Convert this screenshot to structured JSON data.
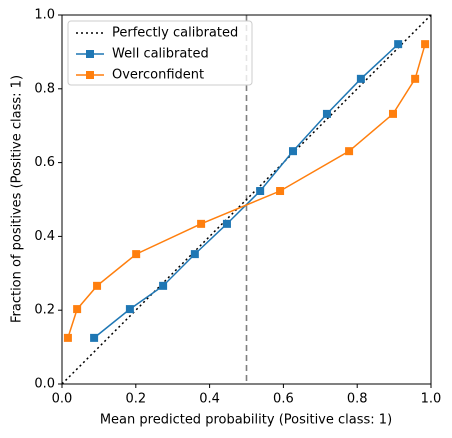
{
  "chart_data": {
    "type": "line",
    "xlabel": "Mean predicted probability (Positive class: 1)",
    "ylabel": "Fraction of positives (Positive class: 1)",
    "xlim": [
      0,
      1
    ],
    "ylim": [
      0,
      1
    ],
    "xticks": [
      {
        "value": 0,
        "label": "0.0"
      },
      {
        "value": 0.2,
        "label": "0.2"
      },
      {
        "value": 0.4,
        "label": "0.4"
      },
      {
        "value": 0.6,
        "label": "0.6"
      },
      {
        "value": 0.8,
        "label": "0.8"
      },
      {
        "value": 1,
        "label": "1.0"
      }
    ],
    "yticks": [
      {
        "value": 0,
        "label": "0.0"
      },
      {
        "value": 0.2,
        "label": "0.2"
      },
      {
        "value": 0.4,
        "label": "0.4"
      },
      {
        "value": 0.6,
        "label": "0.6"
      },
      {
        "value": 0.8,
        "label": "0.8"
      },
      {
        "value": 1,
        "label": "1.0"
      }
    ],
    "legend": "upper left",
    "vline": {
      "x": 0.5,
      "color": "#7f7f7f",
      "style": "dashed"
    },
    "series": [
      {
        "name": "Perfectly calibrated",
        "color": "#000000",
        "style": "dotted",
        "marker": "none",
        "x": [
          0,
          1
        ],
        "values": [
          0,
          1
        ]
      },
      {
        "name": "Well calibrated",
        "color": "#1f77b4",
        "style": "solid",
        "marker": "square",
        "x": [
          0.087,
          0.184,
          0.274,
          0.36,
          0.447,
          0.537,
          0.626,
          0.718,
          0.81,
          0.911
        ],
        "values": [
          0.125,
          0.203,
          0.266,
          0.352,
          0.434,
          0.523,
          0.631,
          0.732,
          0.827,
          0.921
        ]
      },
      {
        "name": "Overconfident",
        "color": "#ff7f0e",
        "style": "solid",
        "marker": "square",
        "x": [
          0.016,
          0.041,
          0.095,
          0.201,
          0.377,
          0.591,
          0.778,
          0.897,
          0.957,
          0.984
        ],
        "values": [
          0.125,
          0.203,
          0.266,
          0.352,
          0.434,
          0.523,
          0.631,
          0.732,
          0.827,
          0.921
        ]
      }
    ]
  }
}
